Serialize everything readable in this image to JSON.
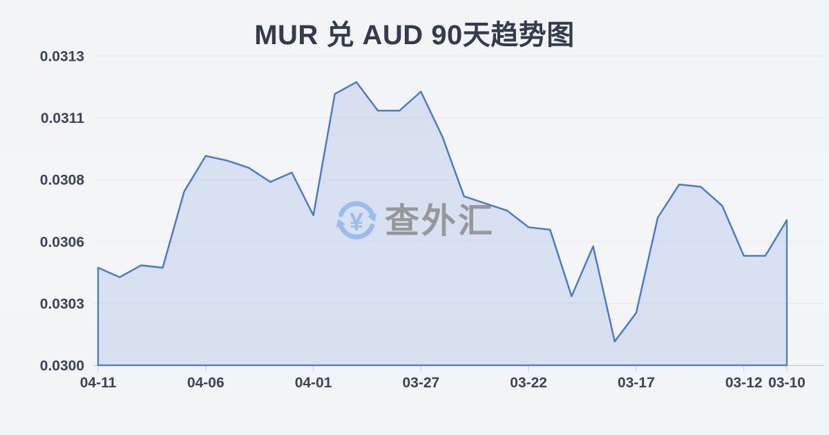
{
  "title": "MUR 兑 AUD 90天趋势图",
  "watermark": {
    "text": "查外汇",
    "icon": "currency-exchange-icon",
    "icon_symbol": "¥"
  },
  "colors": {
    "background": "#f3f5f7",
    "title_text": "#333c4d",
    "axis_text": "#3a4456",
    "line": "#4679d2",
    "fill": "rgba(74,124,214,0.16)",
    "gridline": "#e8eaee",
    "axis_line": "#c9cdd5",
    "tick": "#c9cdd5",
    "watermark_text": "#97989a",
    "watermark_icon": "#9cbcf0"
  },
  "chart_data": {
    "type": "area",
    "title": "MUR 兑 AUD 90天趋势图",
    "xlabel": "",
    "ylabel": "",
    "ylim": [
      0.03,
      0.0313
    ],
    "grid": "horizontal",
    "legend": "none",
    "x": [
      "04-11",
      "04-10",
      "04-09",
      "04-08",
      "04-07",
      "04-06",
      "04-05",
      "04-04",
      "04-03",
      "04-02",
      "04-01",
      "03-31",
      "03-30",
      "03-29",
      "03-28",
      "03-27",
      "03-26",
      "03-25",
      "03-24",
      "03-23",
      "03-22",
      "03-21",
      "03-20",
      "03-19",
      "03-18",
      "03-17",
      "03-16",
      "03-15",
      "03-14",
      "03-13",
      "03-12",
      "03-11",
      "03-10"
    ],
    "values": [
      0.03041,
      0.03037,
      0.03042,
      0.03041,
      0.03073,
      0.03088,
      0.03086,
      0.03083,
      0.03077,
      0.03081,
      0.03063,
      0.03114,
      0.03119,
      0.03107,
      0.03107,
      0.03115,
      0.03096,
      0.03071,
      0.03068,
      0.03065,
      0.03058,
      0.03057,
      0.03029,
      0.0305,
      0.0301,
      0.03022,
      0.03062,
      0.03076,
      0.03075,
      0.03067,
      0.03046,
      0.03046,
      0.03061
    ],
    "x_tick_labels": [
      "04-11",
      "04-06",
      "04-01",
      "03-27",
      "03-22",
      "03-17",
      "03-12",
      "03-10"
    ],
    "x_tick_indices": [
      0,
      5,
      10,
      15,
      20,
      25,
      30,
      32
    ],
    "y_tick_labels": [
      "0.0313",
      "0.0311",
      "0.0308",
      "0.0306",
      "0.0303",
      "0.0300"
    ]
  }
}
